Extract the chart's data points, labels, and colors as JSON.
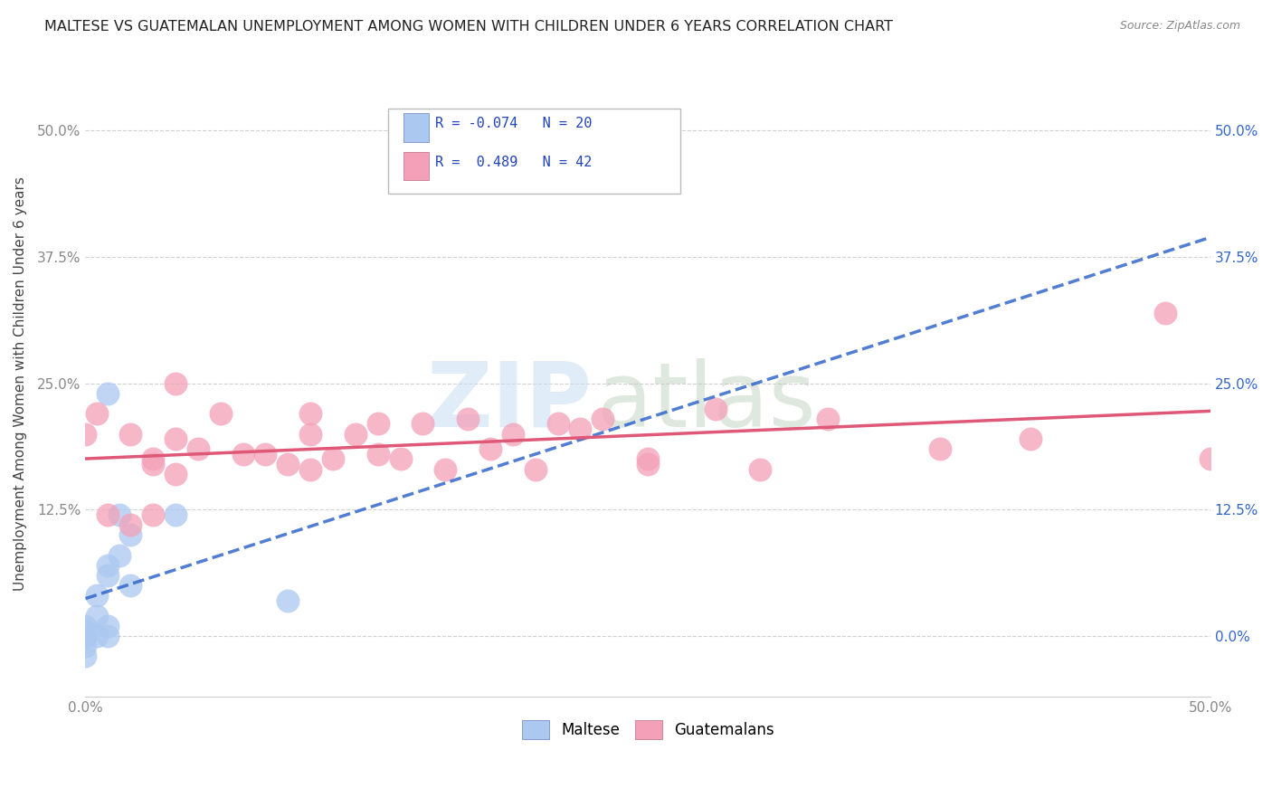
{
  "title": "MALTESE VS GUATEMALAN UNEMPLOYMENT AMONG WOMEN WITH CHILDREN UNDER 6 YEARS CORRELATION CHART",
  "source": "Source: ZipAtlas.com",
  "ylabel": "Unemployment Among Women with Children Under 6 years",
  "xlim": [
    0.0,
    0.5
  ],
  "ylim": [
    -0.06,
    0.56
  ],
  "xticks": [
    0.0,
    0.1,
    0.2,
    0.3,
    0.4,
    0.5
  ],
  "yticks": [
    0.0,
    0.125,
    0.25,
    0.375,
    0.5
  ],
  "xticklabels": [
    "0.0%",
    "",
    "",
    "",
    "",
    "50.0%"
  ],
  "yticklabels": [
    "",
    "12.5%",
    "25.0%",
    "37.5%",
    "50.0%"
  ],
  "right_yticklabels": [
    "0.0%",
    "12.5%",
    "25.0%",
    "37.5%",
    "50.0%"
  ],
  "legend_label1": "R = -0.074   N = 20",
  "legend_label2": "R =  0.489   N = 42",
  "legend_group1": "Maltese",
  "legend_group2": "Guatemalans",
  "maltese_color": "#aac8f0",
  "guatemalan_color": "#f4a0b8",
  "watermark_zip": "ZIP",
  "watermark_atlas": "atlas",
  "background_color": "#ffffff",
  "maltese_x": [
    0.0,
    0.0,
    0.0,
    0.0,
    0.0,
    0.0,
    0.005,
    0.005,
    0.005,
    0.01,
    0.01,
    0.01,
    0.01,
    0.01,
    0.015,
    0.015,
    0.02,
    0.02,
    0.04,
    0.09
  ],
  "maltese_y": [
    0.0,
    0.0,
    -0.01,
    0.005,
    0.01,
    -0.02,
    0.0,
    0.02,
    0.04,
    0.0,
    0.01,
    0.06,
    0.07,
    0.24,
    0.08,
    0.12,
    0.05,
    0.1,
    0.12,
    0.035
  ],
  "guatemalan_x": [
    0.0,
    0.005,
    0.01,
    0.02,
    0.02,
    0.03,
    0.03,
    0.03,
    0.04,
    0.04,
    0.05,
    0.06,
    0.07,
    0.08,
    0.09,
    0.1,
    0.1,
    0.11,
    0.12,
    0.13,
    0.13,
    0.14,
    0.15,
    0.16,
    0.17,
    0.18,
    0.19,
    0.2,
    0.21,
    0.22,
    0.23,
    0.25,
    0.28,
    0.3,
    0.33,
    0.38,
    0.42,
    0.48,
    0.1,
    0.04,
    0.25,
    0.5
  ],
  "guatemalan_y": [
    0.2,
    0.22,
    0.12,
    0.11,
    0.2,
    0.17,
    0.12,
    0.175,
    0.195,
    0.16,
    0.185,
    0.22,
    0.18,
    0.18,
    0.17,
    0.165,
    0.2,
    0.175,
    0.2,
    0.18,
    0.21,
    0.175,
    0.21,
    0.165,
    0.215,
    0.185,
    0.2,
    0.165,
    0.21,
    0.205,
    0.215,
    0.175,
    0.225,
    0.165,
    0.215,
    0.185,
    0.195,
    0.32,
    0.22,
    0.25,
    0.17,
    0.175
  ],
  "maltese_line_color": "#3366cc",
  "guatemalan_line_color": "#e05878",
  "grid_color": "#cccccc",
  "title_color": "#222222",
  "tick_color": "#888888",
  "right_tick_color": "#3366cc",
  "source_color": "#888888"
}
